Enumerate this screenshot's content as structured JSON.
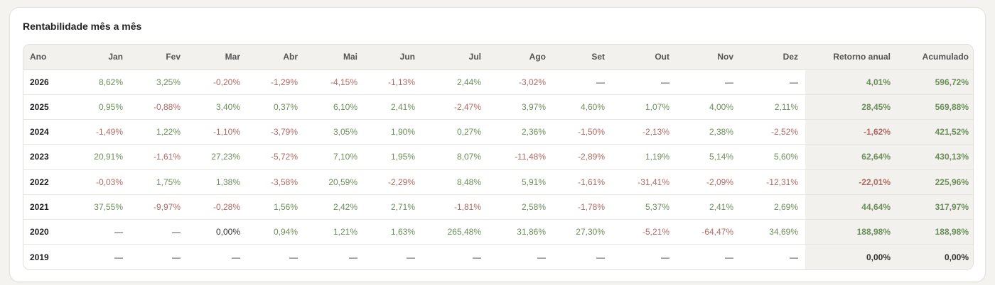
{
  "title": "Rentabilidade mês a mês",
  "columns": [
    "Ano",
    "Jan",
    "Fev",
    "Mar",
    "Abr",
    "Mai",
    "Jun",
    "Jul",
    "Ago",
    "Set",
    "Out",
    "Nov",
    "Dez",
    "Retorno anual",
    "Acumulado"
  ],
  "rows": [
    {
      "year": "2026",
      "cells": [
        "8,62%",
        "3,25%",
        "-0,20%",
        "-1,29%",
        "-4,15%",
        "-1,13%",
        "2,44%",
        "-3,02%",
        "—",
        "—",
        "—",
        "—"
      ],
      "annual": "4,01%",
      "accum": "596,72%"
    },
    {
      "year": "2025",
      "cells": [
        "0,95%",
        "-0,88%",
        "3,40%",
        "0,37%",
        "6,10%",
        "2,41%",
        "-2,47%",
        "3,97%",
        "4,60%",
        "1,07%",
        "4,00%",
        "2,11%"
      ],
      "annual": "28,45%",
      "accum": "569,88%"
    },
    {
      "year": "2024",
      "cells": [
        "-1,49%",
        "1,22%",
        "-1,10%",
        "-3,79%",
        "3,05%",
        "1,90%",
        "0,27%",
        "2,36%",
        "-1,50%",
        "-2,13%",
        "2,38%",
        "-2,52%"
      ],
      "annual": "-1,62%",
      "accum": "421,52%"
    },
    {
      "year": "2023",
      "cells": [
        "20,91%",
        "-1,61%",
        "27,23%",
        "-5,72%",
        "7,10%",
        "1,95%",
        "8,07%",
        "-11,48%",
        "-2,89%",
        "1,19%",
        "5,14%",
        "5,60%"
      ],
      "annual": "62,64%",
      "accum": "430,13%"
    },
    {
      "year": "2022",
      "cells": [
        "-0,03%",
        "1,75%",
        "1,38%",
        "-3,58%",
        "20,59%",
        "-2,29%",
        "8,48%",
        "5,91%",
        "-1,61%",
        "-31,41%",
        "-2,09%",
        "-12,31%"
      ],
      "annual": "-22,01%",
      "accum": "225,96%"
    },
    {
      "year": "2021",
      "cells": [
        "37,55%",
        "-9,97%",
        "-0,28%",
        "1,56%",
        "2,42%",
        "2,71%",
        "-1,81%",
        "2,58%",
        "-1,78%",
        "5,37%",
        "2,41%",
        "2,69%"
      ],
      "annual": "44,64%",
      "accum": "317,97%"
    },
    {
      "year": "2020",
      "cells": [
        "—",
        "—",
        "0,00%",
        "0,94%",
        "1,21%",
        "1,63%",
        "265,48%",
        "31,86%",
        "27,30%",
        "-5,21%",
        "-64,47%",
        "34,69%"
      ],
      "annual": "188,98%",
      "accum": "188,98%"
    },
    {
      "year": "2019",
      "cells": [
        "—",
        "—",
        "—",
        "—",
        "—",
        "—",
        "—",
        "—",
        "—",
        "—",
        "—",
        "—"
      ],
      "annual": "0,00%",
      "accum": "0,00%"
    }
  ],
  "colors": {
    "positive": "#6b8f5a",
    "negative": "#b06a63",
    "neutral": "#333333",
    "summary_bg": "#f2f1ed"
  }
}
